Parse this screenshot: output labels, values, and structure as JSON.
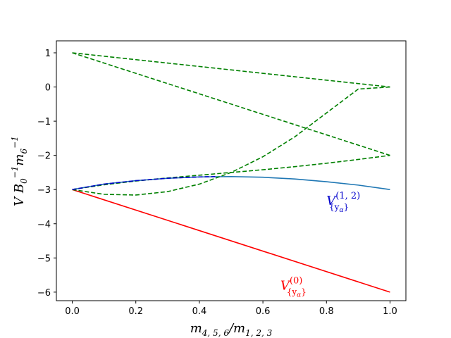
{
  "chart_data": {
    "type": "line",
    "title": "",
    "xlabel": "m_{4,5,6}/m_{1,2,3}",
    "ylabel": "V B_0^{-1} m_6^{-1}",
    "xlim": [
      -0.05,
      1.05
    ],
    "ylim": [
      -6.25,
      1.35
    ],
    "xticks": [
      0.0,
      0.2,
      0.4,
      0.6,
      0.8,
      1.0
    ],
    "xtick_labels": [
      "0.0",
      "0.2",
      "0.4",
      "0.6",
      "0.8",
      "1.0"
    ],
    "yticks": [
      1,
      0,
      -1,
      -2,
      -3,
      -4,
      -5,
      -6
    ],
    "ytick_labels": [
      "1",
      "0",
      "−1",
      "−2",
      "−3",
      "−4",
      "−5",
      "−6"
    ],
    "grid": false,
    "legend": "none",
    "series": [
      {
        "name": "V^{(1,2)} solid",
        "color": "#1f77b4",
        "style": "solid",
        "x": [
          0.0,
          0.1,
          0.2,
          0.3,
          0.4,
          0.5,
          0.6,
          0.7,
          0.8,
          0.9,
          1.0
        ],
        "y": [
          -3.0,
          -2.84,
          -2.74,
          -2.67,
          -2.63,
          -2.62,
          -2.64,
          -2.69,
          -2.77,
          -2.87,
          -3.0
        ]
      },
      {
        "name": "V^{(0)}",
        "color": "#ff0000",
        "style": "solid",
        "x": [
          0.0,
          1.0
        ],
        "y": [
          -3.0,
          -6.0
        ]
      },
      {
        "name": "dashed 1 to 0",
        "color": "#008000",
        "style": "dashed",
        "x": [
          0.0,
          1.0
        ],
        "y": [
          1.0,
          0.0
        ]
      },
      {
        "name": "dashed 1 to -2",
        "color": "#008000",
        "style": "dashed",
        "x": [
          0.0,
          1.0
        ],
        "y": [
          1.0,
          -2.0
        ]
      },
      {
        "name": "dashed -3 to 0",
        "color": "#008000",
        "style": "dashed",
        "x": [
          0.0,
          0.1,
          0.2,
          0.3,
          0.4,
          0.5,
          0.6,
          0.7,
          0.8,
          0.9,
          1.0
        ],
        "y": [
          -3.0,
          -3.14,
          -3.16,
          -3.06,
          -2.84,
          -2.5,
          -2.04,
          -1.46,
          -0.76,
          -0.06,
          0.0
        ]
      },
      {
        "name": "dashed -3 to -2",
        "color": "#008000",
        "style": "dashed",
        "x": [
          0.0,
          0.1,
          0.2,
          0.3,
          0.4,
          0.5,
          0.6,
          0.7,
          0.8,
          0.9,
          1.0
        ],
        "y": [
          -3.0,
          -2.86,
          -2.75,
          -2.66,
          -2.58,
          -2.5,
          -2.42,
          -2.33,
          -2.23,
          -2.12,
          -2.0
        ]
      },
      {
        "name": "dashed blue overlay",
        "color": "#0000cc",
        "style": "dashed",
        "x": [
          0.0,
          0.1,
          0.2,
          0.3,
          0.4,
          0.45
        ],
        "y": [
          -3.0,
          -2.84,
          -2.74,
          -2.67,
          -2.63,
          -2.62
        ]
      }
    ],
    "annotations": [
      {
        "base": "V",
        "sup": "(1, 2)",
        "sub": "{y",
        "sub_greek": "α",
        "sub_end": "}",
        "color": "#0000cc",
        "x": 0.8,
        "y": -3.45
      },
      {
        "base": "V",
        "sup": "(0)",
        "sub": "{y",
        "sub_greek": "α",
        "sub_end": "}",
        "color": "#ff0000",
        "x": 0.655,
        "y": -5.93
      }
    ]
  }
}
